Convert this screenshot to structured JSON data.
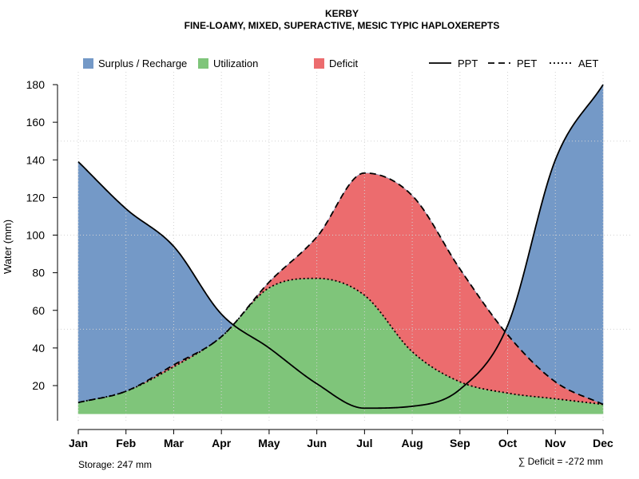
{
  "chart_data": {
    "type": "area",
    "title": "KERBY",
    "subtitle": "FINE-LOAMY, MIXED, SUPERACTIVE, MESIC TYPIC HAPLOXEREPTS",
    "ylabel": "Water (mm)",
    "ylim": [
      5,
      180
    ],
    "yticks": [
      "20",
      "40",
      "60",
      "80",
      "100",
      "120",
      "140",
      "160",
      "180"
    ],
    "categories": [
      "Jan",
      "Feb",
      "Mar",
      "Apr",
      "May",
      "Jun",
      "Jul",
      "Aug",
      "Sep",
      "Oct",
      "Nov",
      "Dec"
    ],
    "series": [
      {
        "name": "PPT",
        "linestyle": "solid",
        "values": [
          139,
          114,
          94,
          58,
          40,
          21,
          8,
          9,
          18,
          52,
          140,
          180
        ]
      },
      {
        "name": "PET",
        "linestyle": "dashed",
        "values": [
          11,
          17,
          31,
          46,
          75,
          99,
          133,
          121,
          82,
          47,
          22,
          10
        ]
      },
      {
        "name": "AET",
        "linestyle": "dotted",
        "values": [
          11,
          17,
          30,
          46,
          72,
          77,
          68,
          38,
          22,
          16,
          13,
          10
        ]
      }
    ],
    "areas": [
      {
        "name": "Surplus / Recharge",
        "color": "#7499c7"
      },
      {
        "name": "Utilization",
        "color": "#7fc57a"
      },
      {
        "name": "Deficit",
        "color": "#ec6c6e"
      }
    ],
    "grid": true,
    "legend_position": "top",
    "footer_left": "Storage: 247 mm",
    "footer_right": "∑ Deficit = -272 mm"
  }
}
